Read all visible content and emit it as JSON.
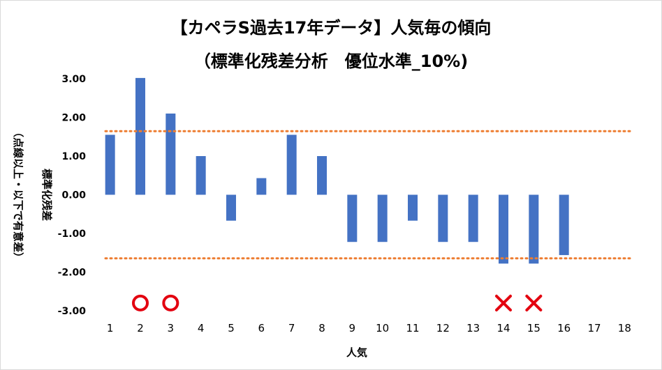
{
  "chart_data": {
    "type": "bar",
    "title_line1": "【カペラS過去17年データ】人気毎の傾向",
    "title_line2": "（標準化残差分析　優位水準_10%)",
    "xlabel": "人気",
    "ylabel_line1": "標準化残差",
    "ylabel_line2": "（点線以上・以下で有意差）",
    "categories": [
      "1",
      "2",
      "3",
      "4",
      "5",
      "6",
      "7",
      "8",
      "9",
      "10",
      "11",
      "12",
      "13",
      "14",
      "15",
      "16",
      "17",
      "18"
    ],
    "values": [
      1.55,
      3.02,
      2.1,
      1.0,
      -0.67,
      0.43,
      1.55,
      1.0,
      -1.22,
      -1.22,
      -0.67,
      -1.22,
      -1.22,
      -1.78,
      -1.78,
      -1.56,
      null,
      null
    ],
    "y_tick_labels": [
      "3.00",
      "2.00",
      "1.00",
      "0.00",
      "-1.00",
      "-2.00",
      "-3.00"
    ],
    "ylim": [
      -3,
      3
    ],
    "threshold_upper": 1.645,
    "threshold_lower": -1.645,
    "markers": [
      {
        "category": "2",
        "symbol": "○",
        "value": -2.8
      },
      {
        "category": "3",
        "symbol": "○",
        "value": -2.8
      },
      {
        "category": "14",
        "symbol": "×",
        "value": -2.8
      },
      {
        "category": "15",
        "symbol": "×",
        "value": -2.8
      }
    ],
    "colors": {
      "bar": "#4472c4",
      "threshold": "#ed7d31",
      "marker": "#e3000f"
    },
    "grid": false
  }
}
